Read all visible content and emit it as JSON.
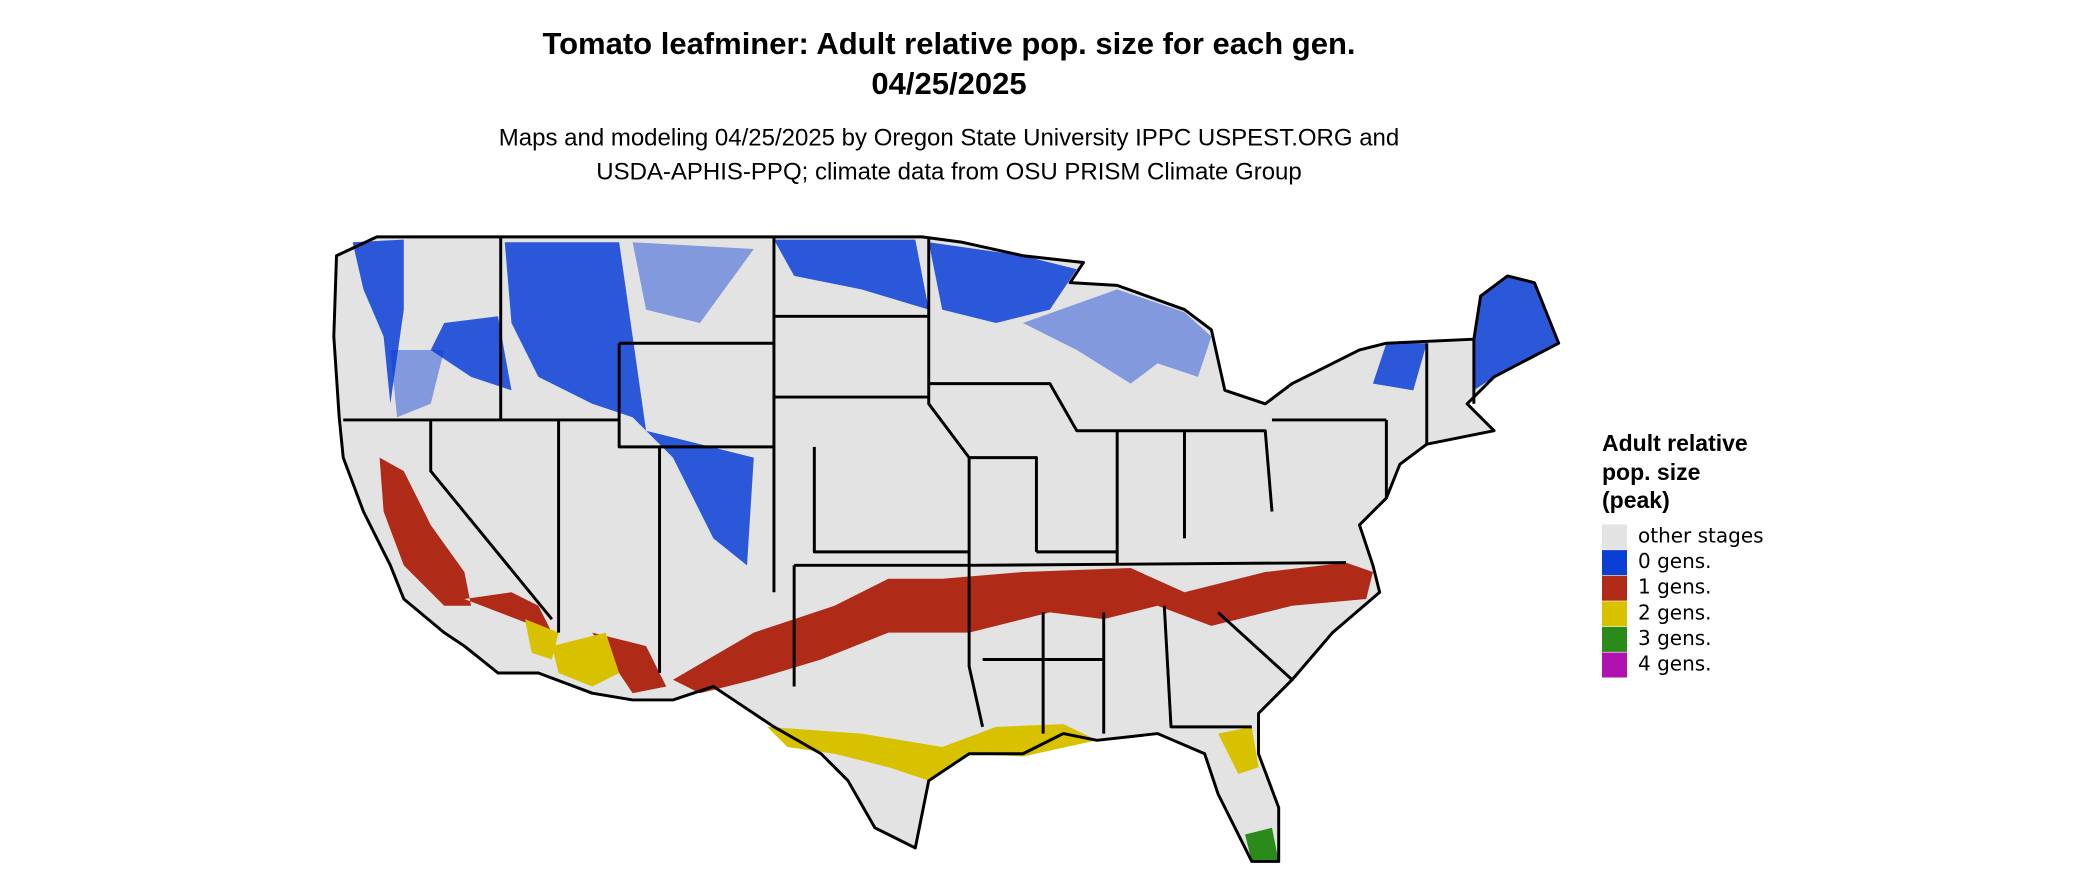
{
  "header": {
    "title": "Tomato leafminer: Adult relative pop. size for each gen.",
    "date": "04/25/2025",
    "subtitle": [
      "Maps and modeling 04/25/2025 by Oregon State University IPPC USPEST.ORG and",
      "USDA-APHIS-PPQ; climate data from OSU PRISM Climate Group"
    ]
  },
  "legend": {
    "title": [
      "Adult relative",
      "pop. size",
      "(peak)"
    ],
    "items": [
      {
        "label": "other stages",
        "color": "#e3e3e3"
      },
      {
        "label": "0 gens.",
        "color": "#0a3fd6"
      },
      {
        "label": "1 gens.",
        "color": "#b02a18"
      },
      {
        "label": "2 gens.",
        "color": "#d8c200"
      },
      {
        "label": "3 gens.",
        "color": "#2a8a1a"
      },
      {
        "label": "4 gens.",
        "color": "#b012b0"
      }
    ]
  }
}
